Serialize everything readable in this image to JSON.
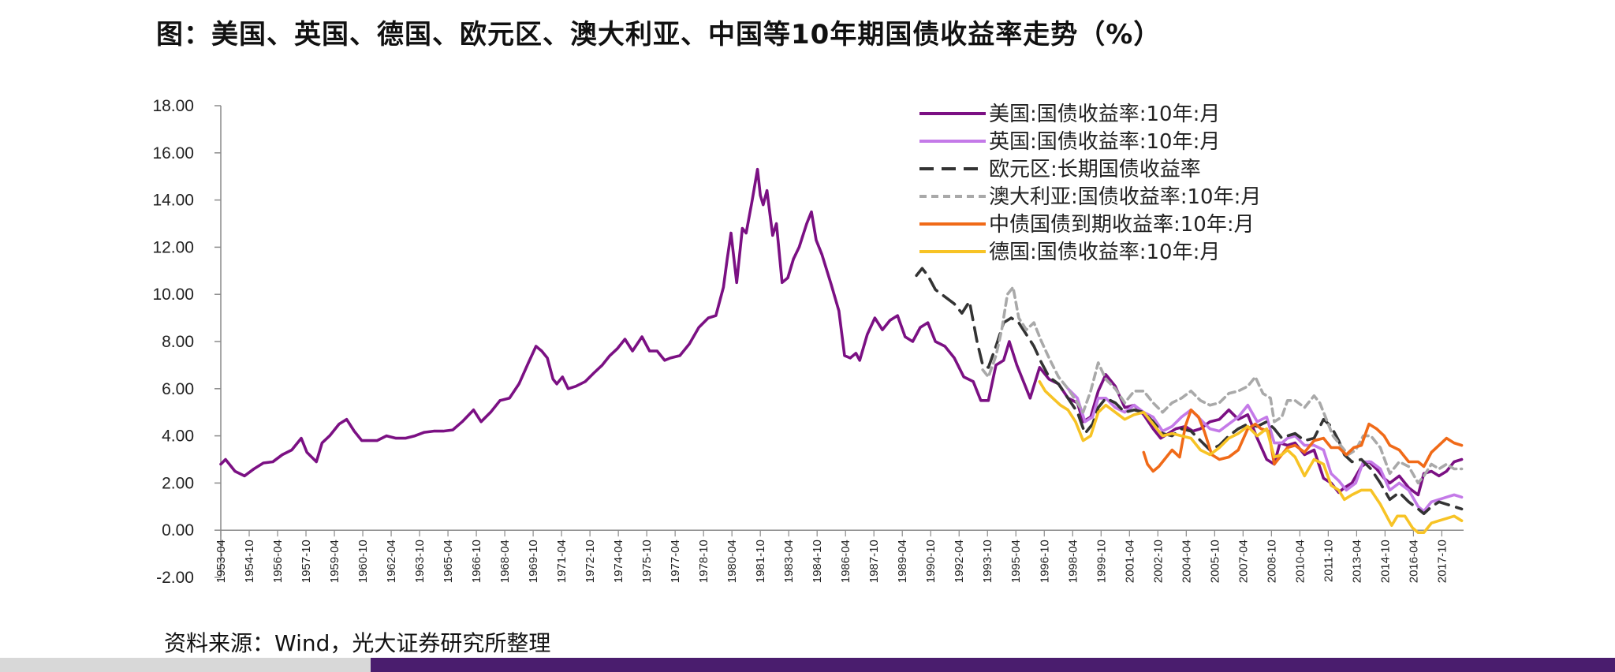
{
  "title": "图：美国、英国、德国、欧元区、澳大利亚、中国等10年期国债收益率走势（%）",
  "source": "资料来源：Wind，光大证券研究所整理",
  "chart_data": {
    "type": "line",
    "title": "图：美国、英国、德国、欧元区、澳大利亚、中国等10年期国债收益率走势（%）",
    "xlabel": "",
    "ylabel": "",
    "ylim": [
      -2,
      18
    ],
    "xlim": [
      1953.25,
      2018.9
    ],
    "y_ticks": [
      "18.00",
      "16.00",
      "14.00",
      "12.00",
      "10.00",
      "8.00",
      "6.00",
      "4.00",
      "2.00",
      "0.00",
      "-2.00"
    ],
    "y_tick_values": [
      18,
      16,
      14,
      12,
      10,
      8,
      6,
      4,
      2,
      0,
      -2
    ],
    "x_ticks": [
      "1953-04",
      "1954-10",
      "1956-04",
      "1957-10",
      "1959-04",
      "1960-10",
      "1962-04",
      "1963-10",
      "1965-04",
      "1966-10",
      "1968-04",
      "1969-10",
      "1971-04",
      "1972-10",
      "1974-04",
      "1975-10",
      "1977-04",
      "1978-10",
      "1980-04",
      "1981-10",
      "1983-04",
      "1984-10",
      "1986-04",
      "1987-10",
      "1989-04",
      "1990-10",
      "1992-04",
      "1993-10",
      "1995-04",
      "1996-10",
      "1998-04",
      "1999-10",
      "2001-04",
      "2002-10",
      "2004-04",
      "2005-10",
      "2007-04",
      "2008-10",
      "2010-04",
      "2011-10",
      "2013-04",
      "2014-10",
      "2016-04",
      "2017-10"
    ],
    "legend_position": "top-right",
    "series": [
      {
        "name": "美国:国债收益率:10年:月",
        "color": "#7b1083",
        "dash": "solid",
        "x": [
          1953.25,
          1953.5,
          1954.0,
          1954.5,
          1955.0,
          1955.5,
          1956.0,
          1956.5,
          1957.0,
          1957.5,
          1957.8,
          1958.3,
          1958.6,
          1959.0,
          1959.5,
          1959.9,
          1960.3,
          1960.7,
          1961.0,
          1961.5,
          1962.0,
          1962.5,
          1963.0,
          1963.5,
          1964.0,
          1964.5,
          1965.0,
          1965.5,
          1966.0,
          1966.6,
          1967.0,
          1967.5,
          1968.0,
          1968.5,
          1969.0,
          1969.5,
          1969.9,
          1970.2,
          1970.5,
          1970.8,
          1971.0,
          1971.3,
          1971.6,
          1972.0,
          1972.5,
          1973.0,
          1973.4,
          1973.8,
          1974.2,
          1974.6,
          1975.0,
          1975.5,
          1975.9,
          1976.3,
          1976.7,
          1977.0,
          1977.5,
          1978.0,
          1978.5,
          1979.0,
          1979.4,
          1979.8,
          1980.0,
          1980.2,
          1980.5,
          1980.8,
          1981.0,
          1981.3,
          1981.6,
          1981.75,
          1981.9,
          1982.1,
          1982.4,
          1982.6,
          1982.9,
          1983.2,
          1983.5,
          1983.8,
          1984.2,
          1984.45,
          1984.7,
          1985.0,
          1985.5,
          1985.9,
          1986.2,
          1986.5,
          1986.8,
          1987.0,
          1987.4,
          1987.8,
          1988.2,
          1988.6,
          1989.0,
          1989.4,
          1989.8,
          1990.2,
          1990.6,
          1991.0,
          1991.5,
          1992.0,
          1992.5,
          1993.0,
          1993.4,
          1993.8,
          1994.2,
          1994.6,
          1994.9,
          1995.3,
          1995.7,
          1996.0,
          1996.5,
          1997.0,
          1997.5,
          1998.0,
          1998.5,
          1998.8,
          1999.2,
          1999.6,
          2000.0,
          2000.5,
          2001.0,
          2001.5,
          2002.0,
          2002.5,
          2002.9,
          2003.3,
          2003.7,
          2004.2,
          2004.6,
          2005.0,
          2005.5,
          2006.0,
          2006.5,
          2007.0,
          2007.5,
          2008.0,
          2008.5,
          2008.9,
          2009.2,
          2009.6,
          2010.0,
          2010.5,
          2011.0,
          2011.5,
          2011.9,
          2012.3,
          2012.6,
          2013.0,
          2013.5,
          2013.9,
          2014.3,
          2014.7,
          2015.0,
          2015.5,
          2016.0,
          2016.5,
          2016.8,
          2017.2,
          2017.6,
          2018.0,
          2018.4,
          2018.8
        ],
        "y": [
          2.8,
          3.0,
          2.5,
          2.3,
          2.6,
          2.85,
          2.9,
          3.2,
          3.4,
          3.9,
          3.3,
          2.9,
          3.7,
          4.0,
          4.5,
          4.7,
          4.2,
          3.8,
          3.8,
          3.8,
          4.0,
          3.9,
          3.9,
          4.0,
          4.15,
          4.2,
          4.2,
          4.25,
          4.6,
          5.1,
          4.6,
          5.0,
          5.5,
          5.6,
          6.2,
          7.1,
          7.8,
          7.6,
          7.3,
          6.4,
          6.2,
          6.5,
          6.0,
          6.1,
          6.3,
          6.7,
          7.0,
          7.4,
          7.7,
          8.1,
          7.6,
          8.2,
          7.6,
          7.6,
          7.2,
          7.3,
          7.4,
          7.9,
          8.6,
          9.0,
          9.1,
          10.3,
          11.5,
          12.6,
          10.5,
          12.8,
          12.6,
          13.9,
          15.3,
          14.2,
          13.8,
          14.4,
          12.5,
          13.0,
          10.5,
          10.7,
          11.5,
          12.0,
          13.0,
          13.5,
          12.3,
          11.7,
          10.4,
          9.3,
          7.4,
          7.3,
          7.5,
          7.2,
          8.3,
          9.0,
          8.5,
          8.9,
          9.1,
          8.2,
          8.0,
          8.6,
          8.8,
          8.0,
          7.8,
          7.3,
          6.5,
          6.3,
          5.5,
          5.5,
          7.0,
          7.2,
          8.0,
          7.0,
          6.2,
          5.6,
          6.9,
          6.4,
          6.2,
          5.6,
          5.4,
          4.6,
          4.8,
          5.9,
          6.6,
          6.1,
          5.2,
          5.3,
          4.9,
          4.3,
          3.9,
          4.1,
          4.3,
          4.4,
          4.2,
          4.3,
          4.6,
          4.7,
          5.1,
          4.7,
          4.9,
          3.9,
          3.0,
          2.8,
          3.7,
          3.6,
          3.7,
          3.2,
          3.4,
          2.2,
          2.0,
          1.6,
          1.8,
          2.0,
          2.7,
          2.9,
          2.6,
          2.2,
          2.0,
          2.3,
          1.8,
          1.5,
          2.4,
          2.5,
          2.3,
          2.5,
          2.9,
          3.0
        ]
      },
      {
        "name": "英国:国债收益率:10年:月",
        "color": "#c47ae8",
        "dash": "solid",
        "x": [
          1998.0,
          1998.5,
          1998.9,
          1999.3,
          1999.6,
          2000.0,
          2000.5,
          2001.0,
          2001.5,
          2002.0,
          2002.5,
          2003.0,
          2003.5,
          2004.0,
          2004.5,
          2005.0,
          2005.5,
          2006.0,
          2006.5,
          2007.0,
          2007.5,
          2008.0,
          2008.5,
          2008.9,
          2009.3,
          2009.6,
          2010.0,
          2010.5,
          2011.0,
          2011.5,
          2011.9,
          2012.3,
          2012.7,
          2013.2,
          2013.6,
          2014.0,
          2014.5,
          2015.0,
          2015.5,
          2016.0,
          2016.5,
          2016.8,
          2017.2,
          2017.6,
          2018.0,
          2018.4,
          2018.8
        ],
        "y": [
          6.0,
          5.6,
          4.6,
          4.8,
          5.6,
          5.6,
          5.2,
          5.0,
          5.3,
          5.0,
          4.8,
          4.2,
          4.4,
          4.8,
          5.1,
          4.7,
          4.3,
          4.2,
          4.5,
          4.8,
          5.3,
          4.6,
          4.8,
          3.7,
          3.7,
          3.9,
          4.0,
          3.6,
          3.6,
          3.4,
          2.4,
          2.1,
          1.7,
          2.0,
          2.9,
          2.9,
          2.6,
          1.7,
          2.0,
          1.7,
          1.0,
          0.8,
          1.2,
          1.3,
          1.4,
          1.5,
          1.4
        ]
      },
      {
        "name": "欧元区:长期国债收益率",
        "color": "#333333",
        "dash": "long",
        "x": [
          1990.0,
          1990.3,
          1990.6,
          1991.0,
          1991.5,
          1992.0,
          1992.4,
          1992.8,
          1993.2,
          1993.5,
          1993.8,
          1994.2,
          1994.6,
          1995.0,
          1995.4,
          1995.8,
          1996.2,
          1996.6,
          1997.0,
          1997.5,
          1998.0,
          1998.5,
          1998.9,
          1999.3,
          1999.6,
          2000.0,
          2000.5,
          2001.0,
          2001.5,
          2002.0,
          2002.5,
          2003.0,
          2003.5,
          2004.0,
          2004.5,
          2005.0,
          2005.5,
          2006.0,
          2006.5,
          2007.0,
          2007.5,
          2008.0,
          2008.5,
          2008.9,
          2009.3,
          2009.6,
          2010.0,
          2010.5,
          2011.0,
          2011.5,
          2011.9,
          2012.3,
          2012.6,
          2013.0,
          2013.5,
          2014.0,
          2014.5,
          2015.0,
          2015.5,
          2016.0,
          2016.5,
          2016.8,
          2017.2,
          2017.6,
          2018.0,
          2018.4,
          2018.8
        ],
        "y": [
          10.8,
          11.1,
          10.8,
          10.2,
          9.9,
          9.6,
          9.2,
          9.7,
          8.0,
          7.0,
          6.9,
          7.8,
          8.8,
          9.0,
          8.8,
          8.3,
          7.8,
          7.1,
          6.5,
          6.2,
          5.6,
          5.0,
          4.1,
          4.5,
          5.2,
          5.6,
          5.4,
          5.0,
          5.1,
          5.0,
          4.6,
          4.1,
          4.0,
          4.3,
          4.2,
          3.8,
          3.4,
          3.6,
          4.0,
          4.3,
          4.5,
          4.4,
          4.6,
          4.3,
          3.9,
          4.0,
          4.1,
          3.8,
          3.9,
          4.7,
          4.4,
          3.8,
          3.2,
          2.9,
          3.0,
          2.6,
          2.0,
          1.3,
          1.6,
          1.2,
          0.9,
          0.7,
          1.0,
          1.2,
          1.1,
          1.0,
          0.9
        ]
      },
      {
        "name": "澳大利亚:国债收益率:10年:月",
        "color": "#a9a9a9",
        "dash": "short",
        "x": [
          1993.5,
          1993.8,
          1994.2,
          1994.5,
          1994.8,
          1995.1,
          1995.4,
          1995.8,
          1996.2,
          1996.6,
          1997.0,
          1997.5,
          1998.0,
          1998.5,
          1998.8,
          1999.2,
          1999.6,
          2000.0,
          2000.5,
          2001.0,
          2001.5,
          2002.0,
          2002.5,
          2003.0,
          2003.5,
          2004.0,
          2004.5,
          2005.0,
          2005.5,
          2006.0,
          2006.5,
          2007.0,
          2007.5,
          2007.9,
          2008.3,
          2008.7,
          2008.9,
          2009.3,
          2009.6,
          2010.0,
          2010.5,
          2011.0,
          2011.3,
          2011.7,
          2012.0,
          2012.4,
          2012.8,
          2013.2,
          2013.6,
          2014.0,
          2014.5,
          2015.0,
          2015.5,
          2016.0,
          2016.5,
          2016.8,
          2017.2,
          2017.6,
          2018.0,
          2018.4,
          2018.8
        ],
        "y": [
          6.8,
          6.5,
          7.4,
          8.5,
          10.0,
          10.3,
          9.0,
          8.5,
          8.8,
          8.0,
          7.3,
          6.5,
          6.0,
          5.4,
          5.0,
          5.9,
          7.1,
          6.4,
          6.0,
          5.4,
          5.9,
          5.9,
          5.4,
          5.0,
          5.4,
          5.6,
          5.9,
          5.5,
          5.3,
          5.4,
          5.8,
          5.9,
          6.1,
          6.5,
          5.8,
          5.6,
          4.6,
          4.8,
          5.5,
          5.5,
          5.2,
          5.7,
          5.4,
          4.6,
          4.0,
          3.6,
          3.2,
          3.4,
          4.0,
          4.0,
          3.5,
          2.4,
          2.9,
          2.7,
          2.0,
          2.3,
          2.8,
          2.6,
          2.8,
          2.6,
          2.6
        ]
      },
      {
        "name": "中债国债到期收益率:10年:月",
        "color": "#f06a18",
        "dash": "solid",
        "x": [
          2002.0,
          2002.2,
          2002.5,
          2002.8,
          2003.1,
          2003.5,
          2003.9,
          2004.2,
          2004.5,
          2004.9,
          2005.2,
          2005.6,
          2006.0,
          2006.5,
          2007.0,
          2007.5,
          2007.9,
          2008.2,
          2008.6,
          2008.9,
          2009.2,
          2009.6,
          2010.0,
          2010.5,
          2011.0,
          2011.5,
          2011.9,
          2012.3,
          2012.7,
          2013.1,
          2013.5,
          2013.9,
          2014.3,
          2014.7,
          2015.0,
          2015.5,
          2016.0,
          2016.5,
          2016.8,
          2017.2,
          2017.6,
          2018.0,
          2018.4,
          2018.8
        ],
        "y": [
          3.3,
          2.8,
          2.5,
          2.7,
          3.0,
          3.4,
          3.1,
          4.4,
          5.1,
          4.8,
          4.2,
          3.2,
          3.0,
          3.1,
          3.4,
          4.3,
          4.5,
          4.3,
          4.2,
          2.8,
          3.1,
          3.5,
          3.6,
          3.3,
          3.8,
          3.9,
          3.5,
          3.5,
          3.2,
          3.5,
          3.6,
          4.5,
          4.3,
          4.0,
          3.6,
          3.4,
          2.9,
          2.9,
          2.7,
          3.3,
          3.6,
          3.9,
          3.7,
          3.6
        ]
      },
      {
        "name": "德国:国债收益率:10年:月",
        "color": "#f7c325",
        "dash": "solid",
        "x": [
          1996.5,
          1996.8,
          1997.2,
          1997.6,
          1998.0,
          1998.4,
          1998.8,
          1999.2,
          1999.6,
          2000.0,
          2000.5,
          2001.0,
          2001.5,
          2002.0,
          2002.5,
          2003.0,
          2003.5,
          2004.0,
          2004.5,
          2005.0,
          2005.5,
          2006.0,
          2006.5,
          2007.0,
          2007.5,
          2008.0,
          2008.5,
          2008.9,
          2009.3,
          2009.6,
          2010.0,
          2010.5,
          2011.0,
          2011.5,
          2011.9,
          2012.3,
          2012.6,
          2013.0,
          2013.5,
          2014.0,
          2014.5,
          2014.9,
          2015.1,
          2015.4,
          2015.8,
          2016.2,
          2016.5,
          2016.8,
          2017.2,
          2017.6,
          2018.0,
          2018.4,
          2018.8
        ],
        "y": [
          6.3,
          5.9,
          5.6,
          5.3,
          5.1,
          4.6,
          3.8,
          4.0,
          5.0,
          5.3,
          5.0,
          4.7,
          4.9,
          5.0,
          4.5,
          4.0,
          4.1,
          4.0,
          3.9,
          3.4,
          3.2,
          3.5,
          3.9,
          4.1,
          4.4,
          4.0,
          4.3,
          3.1,
          3.2,
          3.4,
          3.1,
          2.3,
          3.0,
          2.8,
          1.9,
          1.7,
          1.3,
          1.5,
          1.7,
          1.7,
          1.1,
          0.5,
          0.2,
          0.6,
          0.6,
          0.1,
          -0.1,
          -0.1,
          0.3,
          0.4,
          0.5,
          0.6,
          0.4
        ]
      }
    ]
  }
}
